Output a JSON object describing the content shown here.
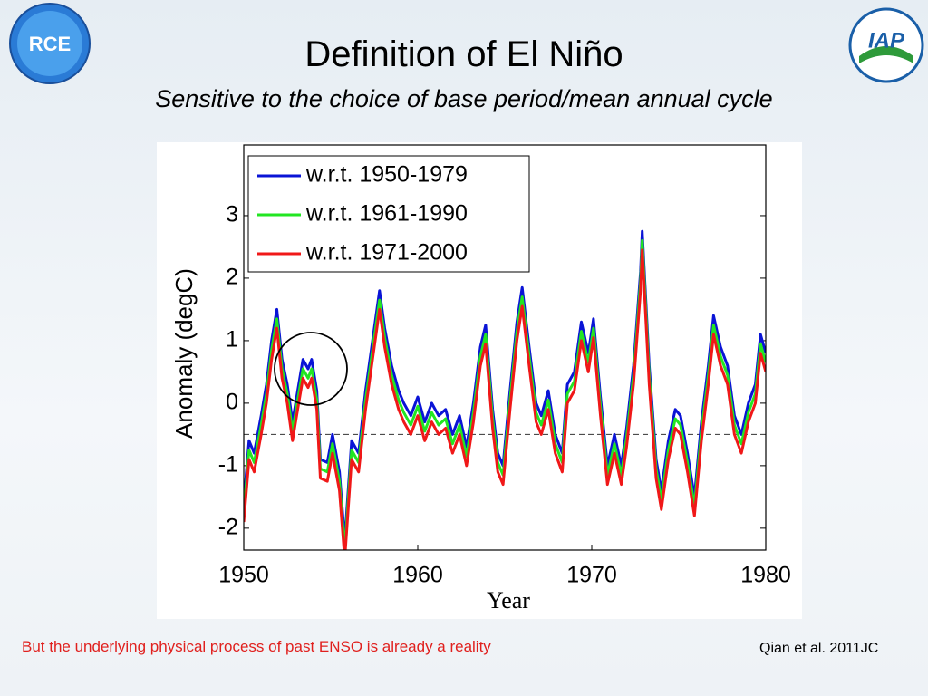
{
  "header": {
    "title": "Definition of El Niño",
    "subtitle": "Sensitive to the choice of base period/mean annual cycle"
  },
  "logos": {
    "left": "RCE",
    "right": "IAP"
  },
  "footer": {
    "note": "But the underlying physical process of past ENSO is already a reality",
    "citation": "Qian et al. 2011JC"
  },
  "chart_data": {
    "type": "line",
    "xlabel": "Year",
    "ylabel": "Anomaly (degC)",
    "xlim": [
      1950,
      1980
    ],
    "xticks": [
      1950,
      1960,
      1970,
      1980
    ],
    "ylim": [
      -2.35,
      4.13
    ],
    "yticks": [
      -2,
      -1,
      0,
      1,
      2,
      3
    ],
    "hlines": [
      0.5,
      -0.5
    ],
    "legend": "upper left",
    "x": [
      1950.0,
      1950.3,
      1950.6,
      1951.0,
      1951.3,
      1951.6,
      1951.9,
      1952.2,
      1952.5,
      1952.8,
      1953.1,
      1953.4,
      1953.7,
      1953.9,
      1954.2,
      1954.4,
      1954.8,
      1955.1,
      1955.5,
      1955.8,
      1956.2,
      1956.6,
      1957.0,
      1957.4,
      1957.8,
      1958.1,
      1958.5,
      1958.9,
      1959.2,
      1959.6,
      1960.0,
      1960.4,
      1960.8,
      1961.2,
      1961.6,
      1962.0,
      1962.4,
      1962.8,
      1963.2,
      1963.6,
      1963.9,
      1964.3,
      1964.6,
      1964.9,
      1965.3,
      1965.7,
      1966.0,
      1966.4,
      1966.8,
      1967.1,
      1967.5,
      1967.9,
      1968.3,
      1968.6,
      1969.0,
      1969.4,
      1969.8,
      1970.1,
      1970.5,
      1970.9,
      1971.3,
      1971.7,
      1972.0,
      1972.4,
      1972.8,
      1972.9,
      1973.3,
      1973.7,
      1974.0,
      1974.4,
      1974.8,
      1975.1,
      1975.5,
      1975.9,
      1976.3,
      1976.7,
      1977.0,
      1977.4,
      1977.8,
      1978.2,
      1978.6,
      1979.0,
      1979.4,
      1979.7,
      1980.0
    ],
    "series": [
      {
        "name": "w.r.t. 1950-1979",
        "color": "#0a14d6",
        "values": [
          -1.6,
          -0.6,
          -0.8,
          -0.2,
          0.3,
          1.0,
          1.5,
          0.7,
          0.3,
          -0.3,
          0.2,
          0.7,
          0.55,
          0.7,
          0.2,
          -0.9,
          -0.95,
          -0.5,
          -1.1,
          -2.2,
          -0.6,
          -0.8,
          0.2,
          1.0,
          1.8,
          1.2,
          0.6,
          0.2,
          0.0,
          -0.2,
          0.1,
          -0.3,
          0.0,
          -0.2,
          -0.1,
          -0.5,
          -0.2,
          -0.7,
          0.0,
          0.9,
          1.25,
          -0.1,
          -0.8,
          -1.0,
          0.2,
          1.3,
          1.85,
          0.9,
          0.0,
          -0.2,
          0.2,
          -0.5,
          -0.8,
          0.3,
          0.5,
          1.3,
          0.8,
          1.35,
          0.1,
          -1.0,
          -0.5,
          -1.0,
          -0.4,
          0.6,
          2.1,
          2.75,
          0.6,
          -0.9,
          -1.4,
          -0.6,
          -0.1,
          -0.2,
          -0.8,
          -1.5,
          -0.3,
          0.6,
          1.4,
          0.9,
          0.6,
          -0.2,
          -0.5,
          0.0,
          0.3,
          1.1,
          0.8
        ]
      },
      {
        "name": "w.r.t. 1961-1990",
        "color": "#22e622",
        "values": [
          -1.75,
          -0.75,
          -0.95,
          -0.35,
          0.15,
          0.85,
          1.35,
          0.55,
          0.15,
          -0.45,
          0.05,
          0.55,
          0.4,
          0.55,
          0.05,
          -1.05,
          -1.1,
          -0.65,
          -1.25,
          -2.35,
          -0.75,
          -0.95,
          0.05,
          0.85,
          1.65,
          1.05,
          0.45,
          0.05,
          -0.15,
          -0.35,
          -0.05,
          -0.45,
          -0.15,
          -0.35,
          -0.25,
          -0.65,
          -0.35,
          -0.85,
          -0.15,
          0.75,
          1.1,
          -0.25,
          -0.95,
          -1.15,
          0.05,
          1.15,
          1.7,
          0.75,
          -0.15,
          -0.35,
          0.05,
          -0.65,
          -0.95,
          0.15,
          0.35,
          1.15,
          0.65,
          1.2,
          -0.05,
          -1.15,
          -0.65,
          -1.15,
          -0.55,
          0.45,
          1.95,
          2.6,
          0.45,
          -1.05,
          -1.55,
          -0.75,
          -0.25,
          -0.35,
          -0.95,
          -1.65,
          -0.45,
          0.45,
          1.25,
          0.75,
          0.45,
          -0.35,
          -0.65,
          -0.15,
          0.15,
          0.95,
          0.65
        ]
      },
      {
        "name": "w.r.t. 1971-2000",
        "color": "#f01818",
        "values": [
          -1.9,
          -0.9,
          -1.1,
          -0.5,
          0.0,
          0.7,
          1.2,
          0.4,
          0.0,
          -0.6,
          -0.1,
          0.4,
          0.25,
          0.4,
          -0.1,
          -1.2,
          -1.25,
          -0.8,
          -1.4,
          -2.5,
          -0.9,
          -1.1,
          -0.1,
          0.7,
          1.5,
          0.9,
          0.3,
          -0.1,
          -0.3,
          -0.5,
          -0.2,
          -0.6,
          -0.3,
          -0.5,
          -0.4,
          -0.8,
          -0.5,
          -1.0,
          -0.3,
          0.6,
          0.95,
          -0.4,
          -1.1,
          -1.3,
          -0.1,
          1.0,
          1.55,
          0.6,
          -0.3,
          -0.5,
          -0.1,
          -0.8,
          -1.1,
          0.0,
          0.2,
          1.0,
          0.5,
          1.05,
          -0.2,
          -1.3,
          -0.8,
          -1.3,
          -0.7,
          0.3,
          1.8,
          2.45,
          0.3,
          -1.2,
          -1.7,
          -0.9,
          -0.4,
          -0.5,
          -1.1,
          -1.8,
          -0.6,
          0.3,
          1.1,
          0.6,
          0.3,
          -0.5,
          -0.8,
          -0.3,
          0.0,
          0.8,
          0.5
        ]
      }
    ]
  }
}
